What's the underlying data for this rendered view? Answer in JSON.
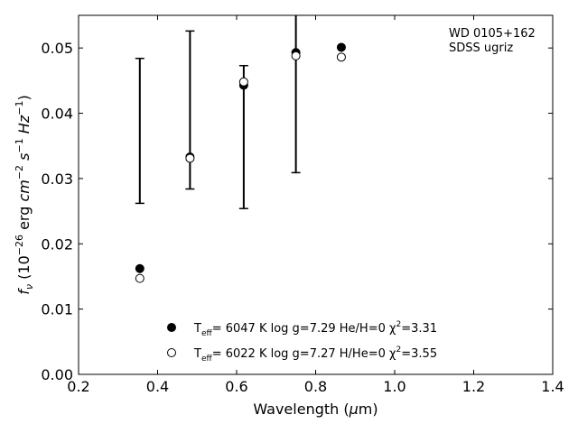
{
  "chart_data": {
    "type": "scatter",
    "xlabel": "Wavelength (μm)",
    "ylabel": "fν (10⁻²⁶ erg cm⁻² s⁻¹ Hz⁻¹)",
    "xlim": [
      0.2,
      1.4
    ],
    "ylim": [
      0.0,
      0.055
    ],
    "x_ticks": [
      "0.2",
      "0.4",
      "0.6",
      "0.8",
      "1.0",
      "1.2",
      "1.4"
    ],
    "y_ticks": [
      "0.00",
      "0.01",
      "0.02",
      "0.03",
      "0.04",
      "0.05"
    ],
    "grid": false,
    "annotation": [
      "WD 0105+162",
      "SDSS ugriz"
    ],
    "observed": {
      "x": [
        0.355,
        0.482,
        0.618,
        0.75
      ],
      "y_low": [
        0.0262,
        0.0284,
        0.0254,
        0.0309
      ],
      "y_high": [
        0.0484,
        0.0526,
        0.0473,
        0.0555
      ]
    },
    "series": [
      {
        "name": "Teff= 6047 K log g=7.29 He/H=0 χ2=3.31",
        "marker": "filled-circle",
        "x": [
          0.355,
          0.482,
          0.618,
          0.75,
          0.865
        ],
        "y": [
          0.0162,
          0.0333,
          0.0443,
          0.0493,
          0.0501
        ]
      },
      {
        "name": "Teff= 6022 K log g=7.27 H/He=0 χ2=3.55",
        "marker": "open-circle",
        "x": [
          0.355,
          0.482,
          0.618,
          0.75,
          0.865
        ],
        "y": [
          0.0147,
          0.0331,
          0.0448,
          0.0488,
          0.0486
        ]
      }
    ],
    "legend_placement": "bottom-center",
    "colors": {
      "axis": "#000000",
      "marker": "#000000",
      "background": "#ffffff"
    }
  }
}
